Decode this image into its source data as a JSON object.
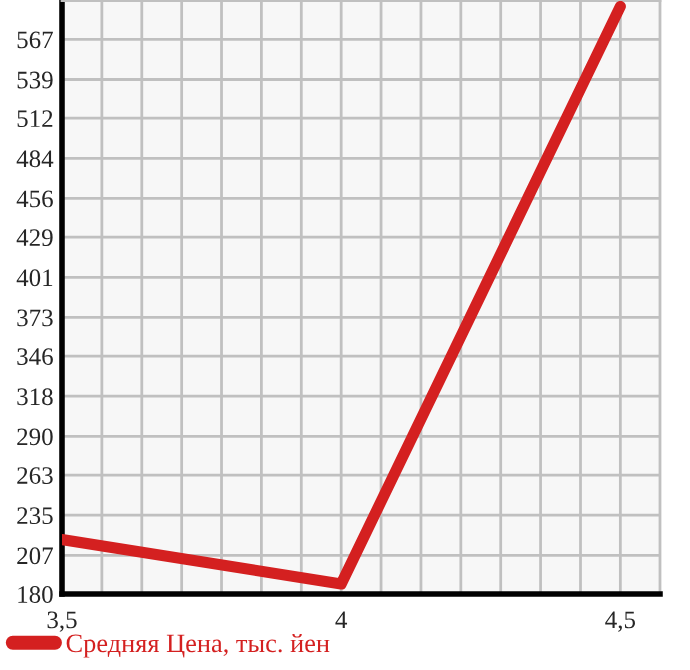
{
  "chart_data": {
    "type": "line",
    "x": [
      3.5,
      4,
      4.5
    ],
    "series": [
      {
        "name": "Средняя Цена, тыс. йен",
        "color": "#d42020",
        "values": [
          218,
          187,
          590
        ]
      }
    ],
    "xlim": [
      3.5,
      4.571
    ],
    "xticks": [
      {
        "value": 3.5,
        "label": "3,5"
      },
      {
        "value": 3.5714,
        "label": null
      },
      {
        "value": 3.6429,
        "label": null
      },
      {
        "value": 3.7143,
        "label": null
      },
      {
        "value": 3.7857,
        "label": null
      },
      {
        "value": 3.8571,
        "label": null
      },
      {
        "value": 3.9286,
        "label": null
      },
      4,
      {
        "value": 4.0714,
        "label": null
      },
      {
        "value": 4.1429,
        "label": null
      },
      {
        "value": 4.2143,
        "label": null
      },
      {
        "value": 4.2857,
        "label": null
      },
      {
        "value": 4.3571,
        "label": null
      },
      {
        "value": 4.4286,
        "label": null
      },
      {
        "value": 4.5,
        "label": "4,5"
      }
    ],
    "ylim": [
      180,
      594
    ],
    "yticks": [
      180,
      207,
      235,
      263,
      290,
      318,
      346,
      373,
      401,
      429,
      456,
      484,
      512,
      539,
      567
    ],
    "grid": true,
    "legend": "bottom left",
    "marker": "none",
    "line_style": "solid"
  }
}
